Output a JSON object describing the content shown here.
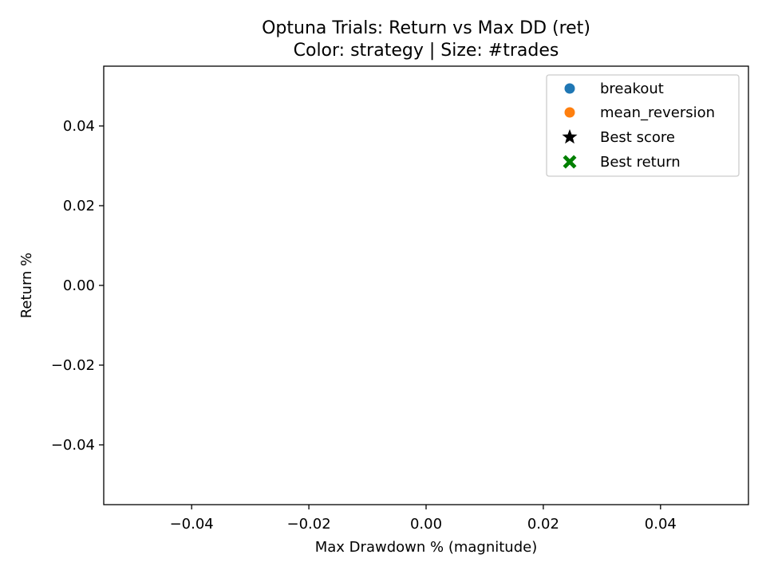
{
  "chart_data": {
    "type": "scatter",
    "title": "Optuna Trials: Return vs Max DD (ret)",
    "subtitle": "Color: strategy | Size: #trades",
    "xlabel": "Max Drawdown % (magnitude)",
    "ylabel": "Return %",
    "xlim": [
      -0.055,
      0.055
    ],
    "ylim": [
      -0.055,
      0.055
    ],
    "xticks": [
      -0.04,
      -0.02,
      0.0,
      0.02,
      0.04
    ],
    "yticks": [
      -0.04,
      -0.02,
      0.0,
      0.02,
      0.04
    ],
    "xtick_labels": [
      "−0.04",
      "−0.02",
      "0.00",
      "0.02",
      "0.04"
    ],
    "ytick_labels": [
      "−0.04",
      "−0.02",
      "0.00",
      "0.02",
      "0.04"
    ],
    "grid": false,
    "legend_position": "top-right",
    "series": [
      {
        "name": "breakout",
        "marker": "circle",
        "color": "#1f77b4",
        "x": [],
        "y": []
      },
      {
        "name": "mean_reversion",
        "marker": "circle",
        "color": "#ff7f0e",
        "x": [],
        "y": []
      },
      {
        "name": "Best score",
        "marker": "star",
        "color": "#000000",
        "x": [],
        "y": []
      },
      {
        "name": "Best return",
        "marker": "x-filled",
        "color": "#008000",
        "x": [],
        "y": []
      }
    ]
  }
}
